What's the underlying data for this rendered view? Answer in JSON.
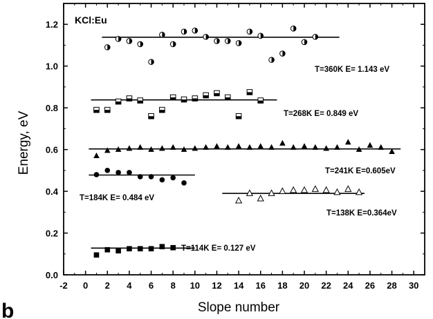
{
  "chart_data": {
    "type": "scatter",
    "title": "",
    "sample_label": "KCl:Eu",
    "panel_label": "b",
    "xlabel": "Slope number",
    "ylabel": "Energy, eV",
    "xlim": [
      -2,
      31
    ],
    "ylim": [
      0.0,
      1.3
    ],
    "x_ticks": [
      -2,
      0,
      2,
      4,
      6,
      8,
      10,
      12,
      14,
      16,
      18,
      20,
      22,
      24,
      26,
      28,
      30
    ],
    "y_ticks": [
      "0.0",
      "0.2",
      "0.4",
      "0.6",
      "0.8",
      "1.0",
      "1.2"
    ],
    "grid": false,
    "series": [
      {
        "label": "T=360K  E= 1.143 eV",
        "marker": "half-circle",
        "fit": {
          "y": 1.138,
          "x_range": [
            1.5,
            23.2
          ]
        },
        "points": [
          [
            2,
            1.09
          ],
          [
            3,
            1.13
          ],
          [
            4,
            1.12
          ],
          [
            5,
            1.105
          ],
          [
            6,
            1.02
          ],
          [
            7,
            1.15
          ],
          [
            8,
            1.105
          ],
          [
            9,
            1.165
          ],
          [
            10,
            1.17
          ],
          [
            11,
            1.14
          ],
          [
            12,
            1.12
          ],
          [
            13,
            1.12
          ],
          [
            14,
            1.11
          ],
          [
            15,
            1.165
          ],
          [
            16,
            1.145
          ],
          [
            17,
            1.03
          ],
          [
            18,
            1.06
          ],
          [
            19,
            1.18
          ],
          [
            20,
            1.115
          ],
          [
            21,
            1.14
          ]
        ]
      },
      {
        "label": "T=268K  E= 0.849 eV",
        "marker": "half-square",
        "fit": {
          "y": 0.838,
          "x_range": [
            0.5,
            17.5
          ]
        },
        "points": [
          [
            1,
            0.79
          ],
          [
            2,
            0.79
          ],
          [
            3,
            0.83
          ],
          [
            4,
            0.845
          ],
          [
            5,
            0.835
          ],
          [
            6,
            0.76
          ],
          [
            7,
            0.79
          ],
          [
            8,
            0.85
          ],
          [
            9,
            0.84
          ],
          [
            10,
            0.845
          ],
          [
            11,
            0.86
          ],
          [
            12,
            0.87
          ],
          [
            13,
            0.85
          ],
          [
            14,
            0.76
          ],
          [
            15,
            0.875
          ],
          [
            16,
            0.835
          ]
        ]
      },
      {
        "label": "T=241K  E=0.605eV",
        "marker": "triangle-filled",
        "fit": {
          "y": 0.603,
          "x_range": [
            0.3,
            28.8
          ]
        },
        "points": [
          [
            1,
            0.57
          ],
          [
            2,
            0.595
          ],
          [
            3,
            0.6
          ],
          [
            4,
            0.605
          ],
          [
            5,
            0.61
          ],
          [
            6,
            0.6
          ],
          [
            7,
            0.605
          ],
          [
            8,
            0.61
          ],
          [
            9,
            0.6
          ],
          [
            10,
            0.605
          ],
          [
            11,
            0.61
          ],
          [
            12,
            0.615
          ],
          [
            13,
            0.61
          ],
          [
            14,
            0.615
          ],
          [
            15,
            0.61
          ],
          [
            16,
            0.615
          ],
          [
            17,
            0.61
          ],
          [
            18,
            0.63
          ],
          [
            19,
            0.61
          ],
          [
            20,
            0.615
          ],
          [
            21,
            0.61
          ],
          [
            22,
            0.605
          ],
          [
            23,
            0.61
          ],
          [
            24,
            0.635
          ],
          [
            25,
            0.6
          ],
          [
            26,
            0.62
          ],
          [
            27,
            0.61
          ],
          [
            28,
            0.59
          ]
        ]
      },
      {
        "label": "T=184K  E= 0.484 eV",
        "marker": "circle-filled",
        "fit": {
          "y": 0.478,
          "x_range": [
            0.3,
            10.0
          ]
        },
        "points": [
          [
            1,
            0.48
          ],
          [
            2,
            0.5
          ],
          [
            3,
            0.49
          ],
          [
            4,
            0.49
          ],
          [
            5,
            0.47
          ],
          [
            6,
            0.47
          ],
          [
            7,
            0.455
          ],
          [
            8,
            0.465
          ],
          [
            9,
            0.44
          ]
        ]
      },
      {
        "label": "T=138K E=0.364eV",
        "marker": "triangle-open",
        "fit": {
          "y": 0.39,
          "x_range": [
            12.5,
            25.5
          ]
        },
        "points": [
          [
            14,
            0.355
          ],
          [
            15,
            0.39
          ],
          [
            16,
            0.365
          ],
          [
            17,
            0.39
          ],
          [
            18,
            0.4
          ],
          [
            19,
            0.405
          ],
          [
            20,
            0.405
          ],
          [
            21,
            0.41
          ],
          [
            22,
            0.405
          ],
          [
            23,
            0.395
          ],
          [
            24,
            0.41
          ],
          [
            25,
            0.395
          ]
        ]
      },
      {
        "label": "T=114K  E= 0.127 eV",
        "marker": "square-filled",
        "fit": {
          "y": 0.128,
          "x_range": [
            0.5,
            10.0
          ]
        },
        "points": [
          [
            1,
            0.095
          ],
          [
            2,
            0.12
          ],
          [
            3,
            0.115
          ],
          [
            4,
            0.125
          ],
          [
            5,
            0.125
          ],
          [
            6,
            0.125
          ],
          [
            7,
            0.135
          ],
          [
            8,
            0.13
          ]
        ]
      }
    ]
  }
}
